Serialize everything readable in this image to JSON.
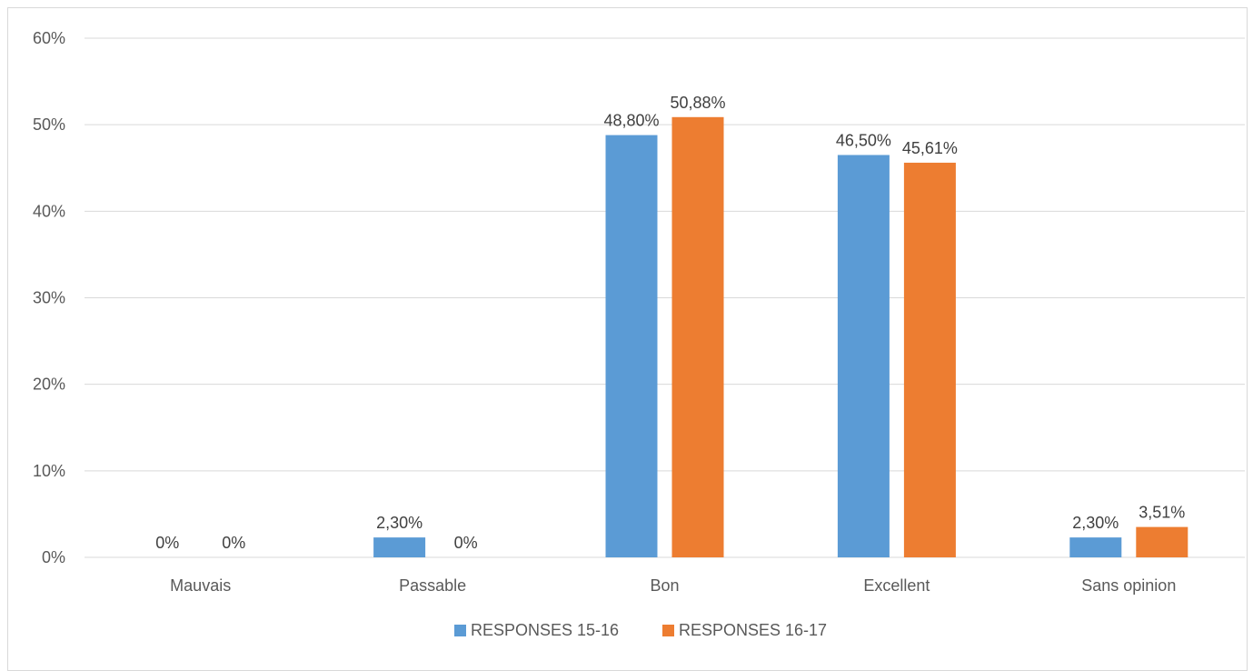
{
  "chart_data": {
    "type": "bar",
    "title": "",
    "xlabel": "",
    "ylabel": "",
    "categories": [
      "Mauvais",
      "Passable",
      "Bon",
      "Excellent",
      "Sans opinion"
    ],
    "series": [
      {
        "name": "RESPONSES 15-16",
        "color": "#5B9BD5",
        "values": [
          0,
          2.3,
          48.8,
          46.5,
          2.3
        ],
        "labels": [
          "0%",
          "2,30%",
          "48,80%",
          "46,50%",
          "2,30%"
        ]
      },
      {
        "name": "RESPONSES 16-17",
        "color": "#ED7D31",
        "values": [
          0,
          0,
          50.88,
          45.61,
          3.51
        ],
        "labels": [
          "0%",
          "0%",
          "50,88%",
          "45,61%",
          "3,51%"
        ]
      }
    ],
    "ylim": [
      0,
      60
    ],
    "yticks": [
      0,
      10,
      20,
      30,
      40,
      50,
      60
    ],
    "ytick_labels": [
      "0%",
      "10%",
      "20%",
      "30%",
      "40%",
      "50%",
      "60%"
    ],
    "grid": true,
    "legend_position": "bottom"
  }
}
